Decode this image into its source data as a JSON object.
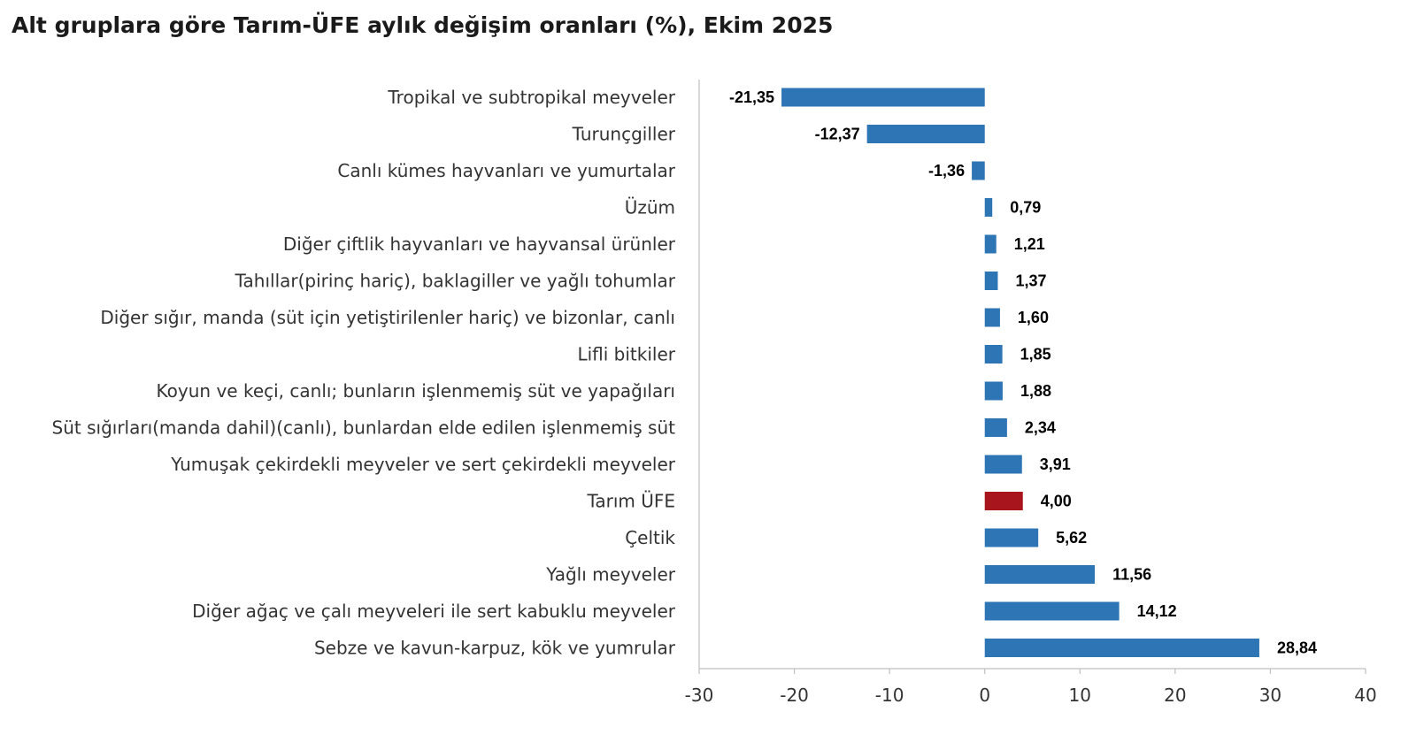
{
  "chart_data": {
    "type": "bar",
    "orientation": "horizontal",
    "title": "Alt gruplara göre Tarım-ÜFE aylık değişim oranları (%), Ekim 2025",
    "xlabel": "",
    "ylabel": "",
    "xlim": [
      -30,
      40
    ],
    "xticks": [
      -30,
      -20,
      -10,
      0,
      10,
      20,
      30,
      40
    ],
    "grid": false,
    "legend": "none",
    "bar_color": "#2e75b6",
    "highlight_color": "#a8151d",
    "highlight_category": "Tarım ÜFE",
    "categories": [
      "Tropikal ve subtropikal meyveler",
      "Turunçgiller",
      "Canlı kümes hayvanları ve yumurtalar",
      "Üzüm",
      "Diğer çiftlik hayvanları ve hayvansal ürünler",
      "Tahıllar(pirinç hariç), baklagiller ve yağlı tohumlar",
      "Diğer sığır, manda (süt için yetiştirilenler hariç) ve bizonlar, canlı",
      "Lifli bitkiler",
      "Koyun ve keçi, canlı; bunların işlenmemiş süt ve yapağıları",
      "Süt sığırları(manda dahil)(canlı), bunlardan elde edilen işlenmemiş süt",
      "Yumuşak çekirdekli meyveler ve sert çekirdekli meyveler",
      "Tarım ÜFE",
      "Çeltik",
      "Yağlı meyveler",
      "Diğer ağaç ve çalı meyveleri ile sert kabuklu meyveler",
      "Sebze ve kavun-karpuz, kök ve yumrular"
    ],
    "values": [
      -21.35,
      -12.37,
      -1.36,
      0.79,
      1.21,
      1.37,
      1.6,
      1.85,
      1.88,
      2.34,
      3.91,
      4.0,
      5.62,
      11.56,
      14.12,
      28.84
    ],
    "value_labels": [
      "-21,35",
      "-12,37",
      "-1,36",
      "0,79",
      "1,21",
      "1,37",
      "1,60",
      "1,85",
      "1,88",
      "2,34",
      "3,91",
      "4,00",
      "5,62",
      "11,56",
      "14,12",
      "28,84"
    ]
  }
}
